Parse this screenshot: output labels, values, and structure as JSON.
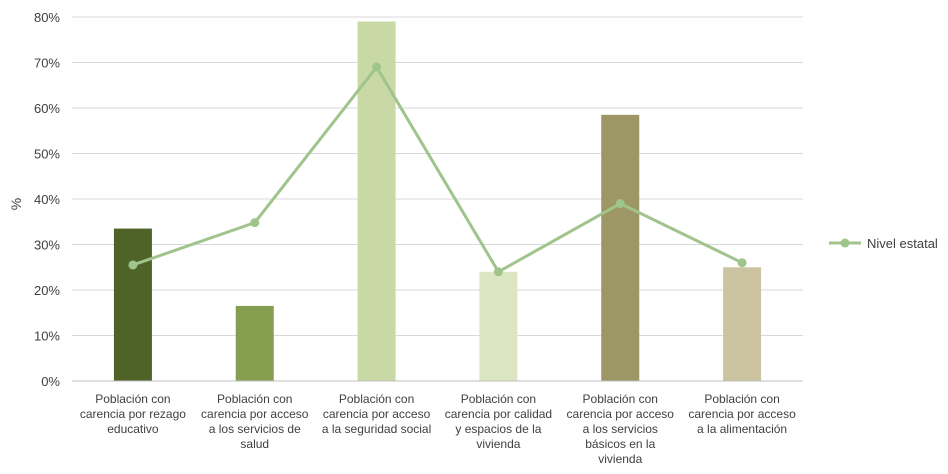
{
  "chart_data": {
    "type": "bar",
    "ylabel": "%",
    "ylim": [
      0,
      80
    ],
    "yticks": [
      "0%",
      "10%",
      "20%",
      "30%",
      "40%",
      "50%",
      "60%",
      "70%",
      "80%"
    ],
    "grid": true,
    "legend_position": "right",
    "categories": [
      [
        "Población con",
        "carencia por rezago",
        "educativo"
      ],
      [
        "Población con",
        "carencia por acceso",
        "a los servicios de",
        "salud"
      ],
      [
        "Población con",
        "carencia por acceso",
        "a la seguridad social"
      ],
      [
        "Población con",
        "carencia por calidad",
        "y espacios de la",
        "vivienda"
      ],
      [
        "Población con",
        "carencia por acceso",
        "a los servicios",
        "básicos en la",
        "vivienda"
      ],
      [
        "Población con",
        "carencia por acceso",
        "a la alimentación"
      ]
    ],
    "bar_values": [
      33.5,
      16.5,
      79.0,
      24.0,
      58.5,
      25.0
    ],
    "bar_colors": [
      "#4f6228",
      "#859e4f",
      "#c8d9a6",
      "#dde6c3",
      "#9d9665",
      "#ccc4a0"
    ],
    "line_series": {
      "name": "Nivel estatal",
      "values": [
        25.5,
        34.8,
        69.0,
        24.0,
        39.0,
        26.0
      ],
      "color": "#9fc48c"
    }
  }
}
